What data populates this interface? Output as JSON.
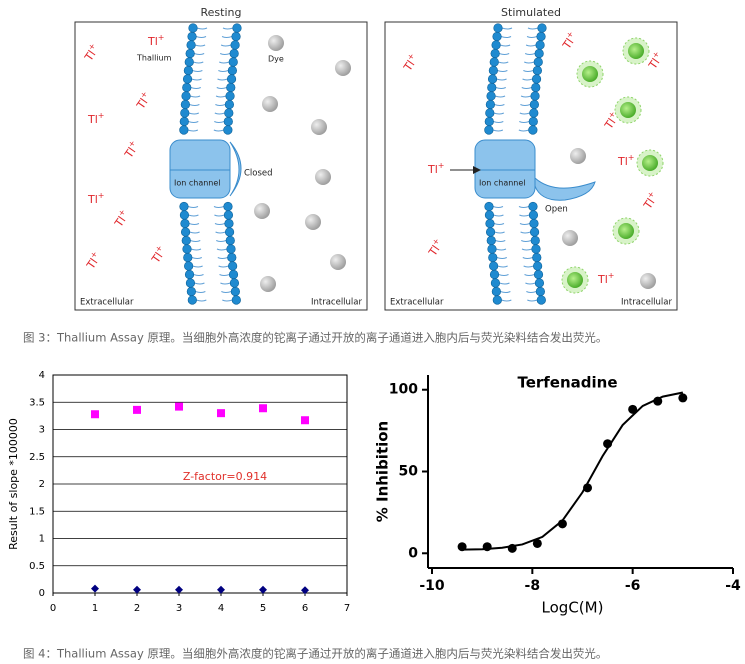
{
  "figure_3": {
    "panels": [
      {
        "title": "Resting",
        "channel_state": "Closed",
        "ion_label": "Thallium",
        "dye_label": "Dye"
      },
      {
        "title": "Stimulated",
        "channel_state": "Open"
      }
    ],
    "channel_label": "Ion channel",
    "extracellular": "Extracellular",
    "intracellular": "Intracellular",
    "ion_symbol": "Tl",
    "ion_charge": "+",
    "caption": "图 3：Thallium Assay 原理。当细胞外高浓度的铊离子通过开放的离子通道进入胞内后与荧光染料结合发出荧光。"
  },
  "chart_data": [
    {
      "type": "scatter",
      "y_label": "Result of slope *100000",
      "annotation": "Z-factor=0.914",
      "annotation_color": "#e0302a",
      "x": [
        1,
        2,
        3,
        4,
        5,
        6
      ],
      "series": [
        {
          "color": "#ff00ff",
          "marker": "square",
          "values": [
            3.28,
            3.36,
            3.42,
            3.3,
            3.39,
            3.17
          ]
        },
        {
          "color": "#000080",
          "marker": "diamond",
          "values": [
            0.08,
            0.06,
            0.06,
            0.06,
            0.06,
            0.05
          ]
        }
      ],
      "xlim": [
        0,
        7
      ],
      "xticks": [
        0,
        1,
        2,
        3,
        4,
        5,
        6,
        7
      ],
      "ylim": [
        0,
        4
      ],
      "yticks": [
        0,
        0.5,
        1,
        1.5,
        2,
        2.5,
        3,
        3.5,
        4
      ],
      "grid": true,
      "frame": true
    },
    {
      "type": "scatter",
      "title": "Terfenadine",
      "x_label": "LogC(M)",
      "y_label": "% Inhibition",
      "series": [
        {
          "color": "#000000",
          "marker": "circle",
          "x": [
            -9.4,
            -8.9,
            -8.4,
            -7.9,
            -7.4,
            -6.9,
            -6.5,
            -6.0,
            -5.5,
            -5.0
          ],
          "values": [
            4,
            4,
            3,
            6,
            18,
            40,
            67,
            88,
            93,
            95
          ]
        },
        {
          "color": "#000000",
          "line": true,
          "x": [
            -9.4,
            -9.0,
            -8.6,
            -8.2,
            -7.8,
            -7.4,
            -7.0,
            -6.6,
            -6.2,
            -5.8,
            -5.4,
            -5.0
          ],
          "values": [
            2.2,
            2.5,
            3.4,
            5.4,
            10.0,
            20.0,
            37.3,
            59.4,
            78.4,
            90.1,
            95.8,
            98.3
          ]
        }
      ],
      "xlim": [
        -10,
        -4
      ],
      "xticks": [
        -10,
        -8,
        -6,
        -4
      ],
      "ylim": [
        -9,
        109
      ],
      "yticks": [
        0,
        50,
        100
      ],
      "grid": false,
      "frame": false
    }
  ],
  "figure_4": {
    "caption": "图 4：Thallium Assay 原理。当细胞外高浓度的铊离子通过开放的离子通道进入胞内后与荧光染料结合发出荧光。"
  }
}
